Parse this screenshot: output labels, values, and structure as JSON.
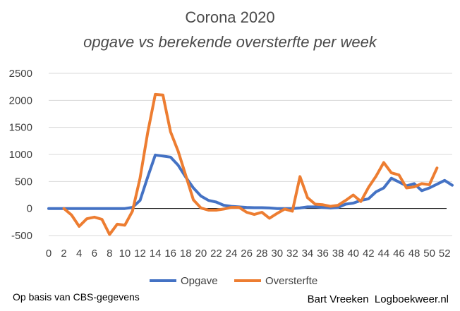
{
  "chart_data": {
    "type": "line",
    "title": "Corona 2020",
    "subtitle": "opgave vs berekende oversterfte per week",
    "xlabel": "",
    "ylabel": "",
    "xlim": [
      0,
      53
    ],
    "ylim": [
      -500,
      2500
    ],
    "x_ticks": [
      0,
      2,
      4,
      6,
      8,
      10,
      12,
      14,
      16,
      18,
      20,
      22,
      24,
      26,
      28,
      30,
      32,
      34,
      36,
      38,
      40,
      42,
      44,
      46,
      48,
      50,
      52
    ],
    "y_ticks": [
      -500,
      0,
      500,
      1000,
      1500,
      2000,
      2500
    ],
    "y_tick_labels": [
      "-500",
      "0",
      "500",
      "1000",
      "1500",
      "2000",
      "2500"
    ],
    "grid": "horizontal",
    "legend_position": "bottom",
    "series": [
      {
        "name": "Opgave",
        "color": "#4472c4",
        "x": [
          0,
          1,
          2,
          3,
          4,
          5,
          6,
          7,
          8,
          9,
          10,
          11,
          12,
          13,
          14,
          15,
          16,
          17,
          18,
          19,
          20,
          21,
          22,
          23,
          24,
          25,
          26,
          27,
          28,
          29,
          30,
          31,
          32,
          33,
          34,
          35,
          36,
          37,
          38,
          39,
          40,
          41,
          42,
          43,
          44,
          45,
          46,
          47,
          48,
          49,
          50,
          51,
          52,
          53
        ],
        "values": [
          0,
          0,
          0,
          0,
          0,
          0,
          0,
          0,
          0,
          0,
          0,
          20,
          150,
          580,
          990,
          970,
          950,
          800,
          580,
          380,
          230,
          150,
          120,
          60,
          40,
          30,
          20,
          15,
          15,
          10,
          0,
          0,
          0,
          10,
          30,
          30,
          20,
          10,
          20,
          80,
          100,
          150,
          180,
          310,
          380,
          560,
          490,
          420,
          460,
          330,
          380,
          450,
          520,
          430
        ]
      },
      {
        "name": "Oversterfte",
        "color": "#ed7d31",
        "x": [
          2,
          3,
          4,
          5,
          6,
          7,
          8,
          9,
          10,
          11,
          12,
          13,
          14,
          15,
          16,
          17,
          18,
          19,
          20,
          21,
          22,
          23,
          24,
          25,
          26,
          27,
          28,
          29,
          30,
          31,
          32,
          33,
          34,
          35,
          36,
          37,
          38,
          39,
          40,
          41,
          42,
          43,
          44,
          45,
          46,
          47,
          48,
          49,
          50,
          51
        ],
        "values": [
          0,
          -120,
          -330,
          -190,
          -160,
          -200,
          -480,
          -290,
          -310,
          -50,
          560,
          1400,
          2110,
          2100,
          1420,
          1060,
          610,
          160,
          10,
          -30,
          -30,
          -10,
          20,
          20,
          -70,
          -110,
          -70,
          -180,
          -90,
          -10,
          -50,
          590,
          200,
          80,
          70,
          40,
          60,
          150,
          250,
          130,
          390,
          600,
          850,
          660,
          620,
          380,
          400,
          460,
          440,
          750
        ]
      }
    ]
  },
  "footer": {
    "left": "Op basis van CBS-gegevens",
    "right": "Bart Vreeken  Logboekweer.nl"
  }
}
